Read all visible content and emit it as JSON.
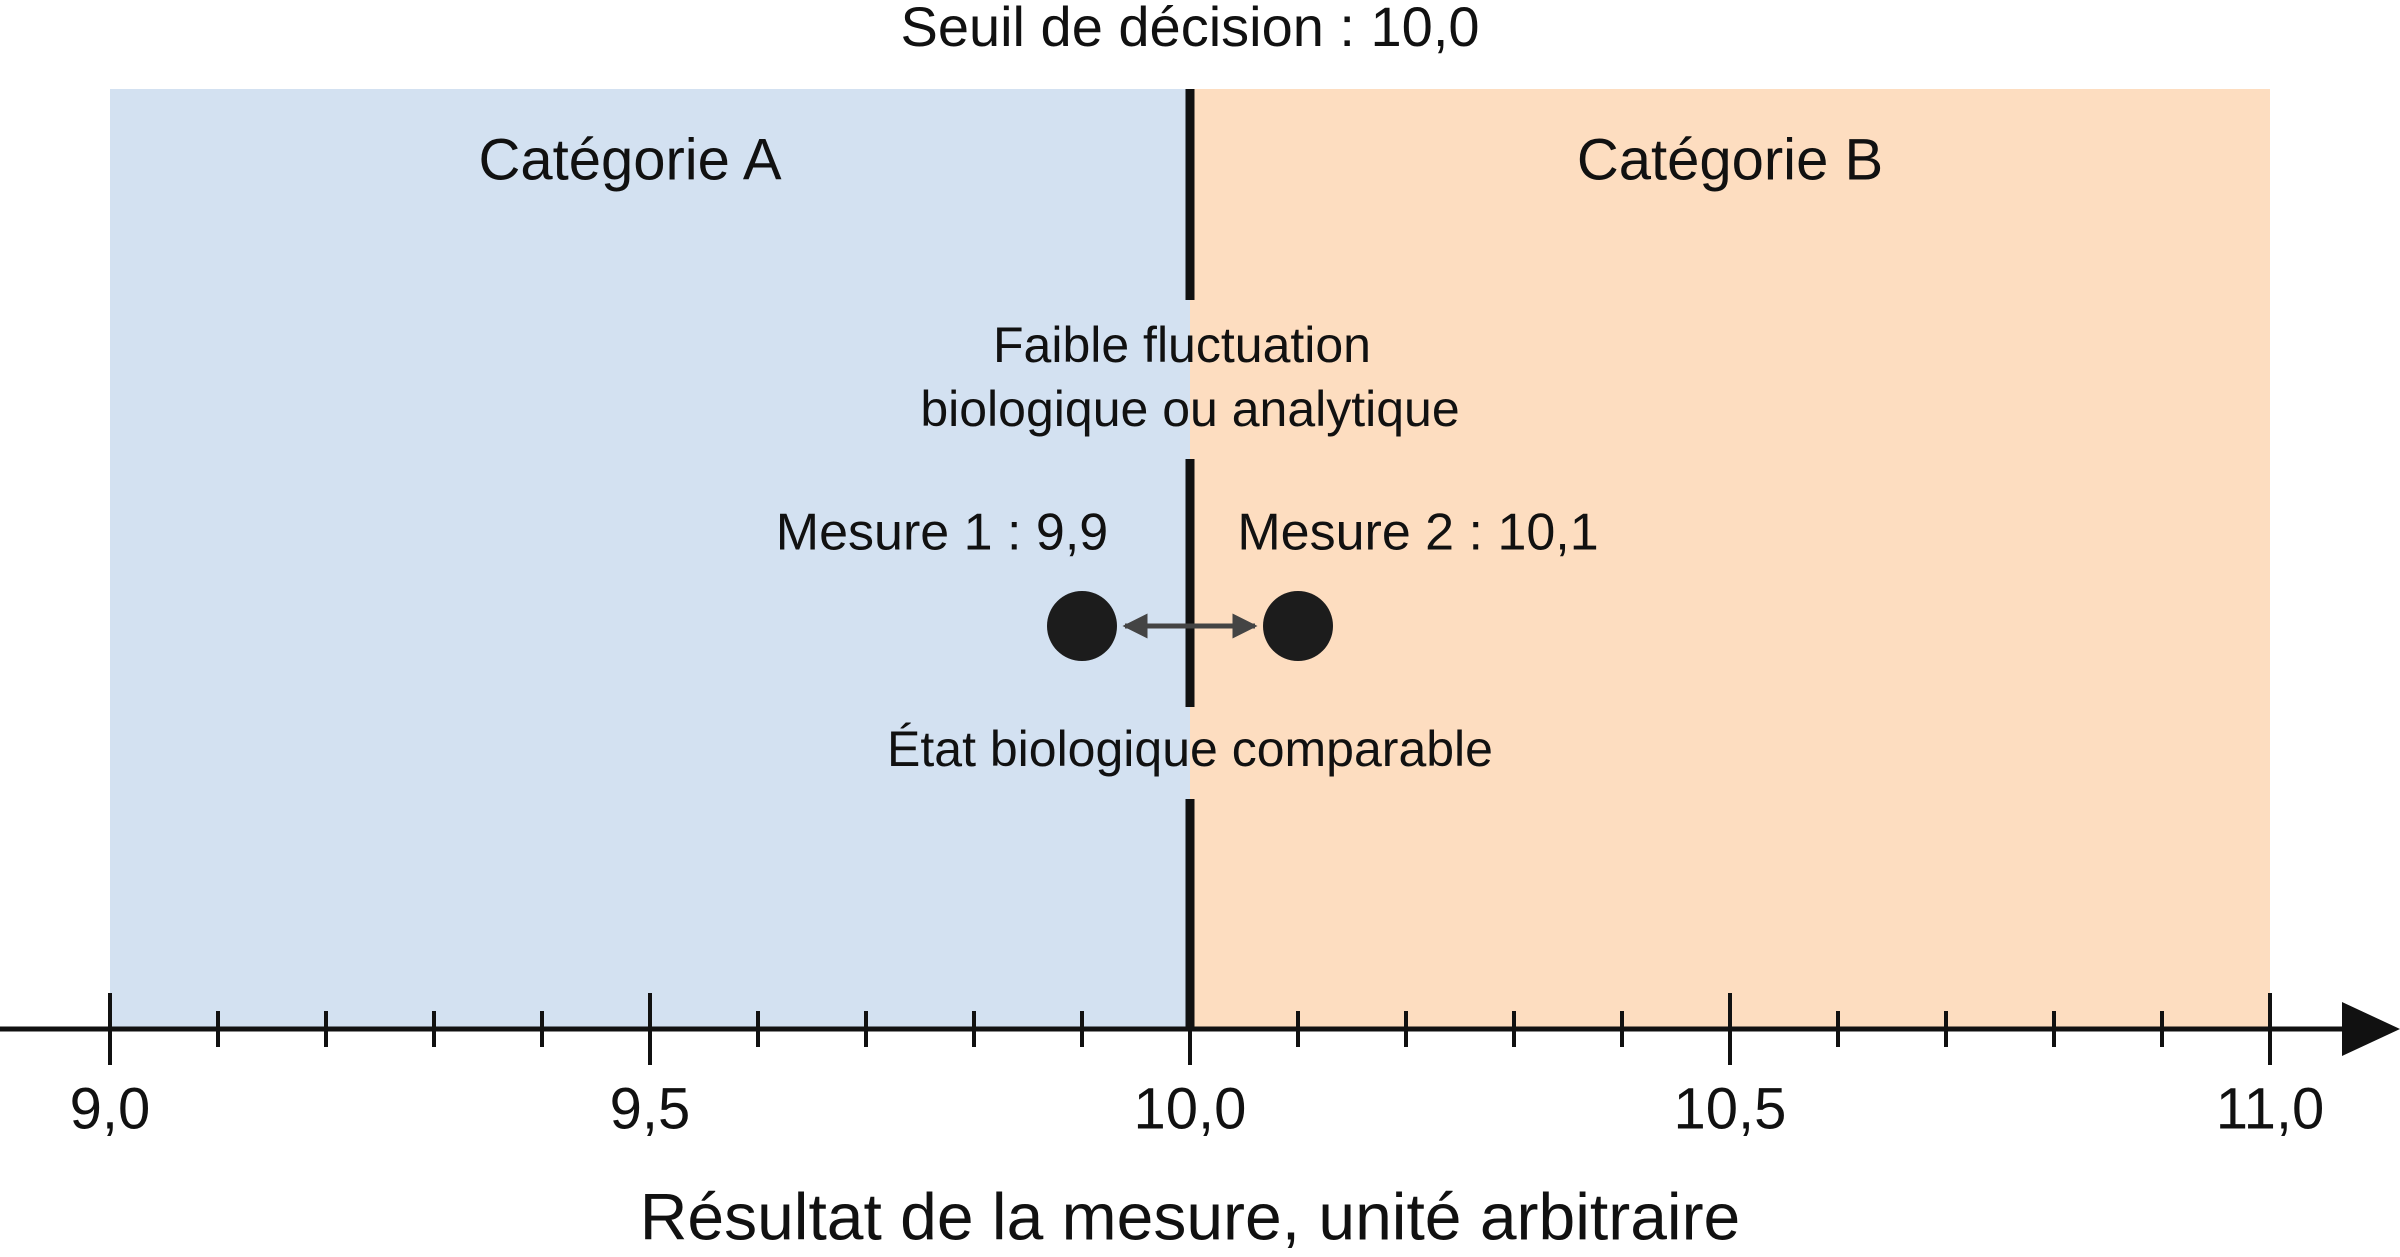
{
  "chart_data": {
    "type": "scatter",
    "title": "Seuil de décision : 10,0",
    "threshold": 10,
    "x_label": "Résultat de la mesure, unité arbitraire",
    "xlim": [
      9,
      11
    ],
    "xticks": [
      {
        "value": 9,
        "label": "9,0"
      },
      {
        "value": 9.5,
        "label": "9,5"
      },
      {
        "value": 10,
        "label": "10,0"
      },
      {
        "value": 10.5,
        "label": "10,5"
      },
      {
        "value": 11,
        "label": "11,0"
      }
    ],
    "minor_xticks": [
      9.1,
      9.2,
      9.3,
      9.4,
      9.6,
      9.7,
      9.8,
      9.9,
      10.1,
      10.2,
      10.3,
      10.4,
      10.6,
      10.7,
      10.8,
      10.9
    ],
    "regions": [
      {
        "name": "Catégorie A",
        "color": "#d3e1f1",
        "range": [
          9,
          10
        ]
      },
      {
        "name": "Catégorie B",
        "color": "#fdddc0",
        "range": [
          10,
          11
        ]
      }
    ],
    "points": {
      "x": [
        9.9,
        10.1
      ],
      "labels": [
        "Mesure 1 : 9,9",
        "Mesure 2 : 10,1"
      ],
      "color": "#1c1c1c"
    },
    "annotations": [
      "Faible fluctuation",
      "biologique ou analytique",
      "État biologique comparable"
    ]
  }
}
